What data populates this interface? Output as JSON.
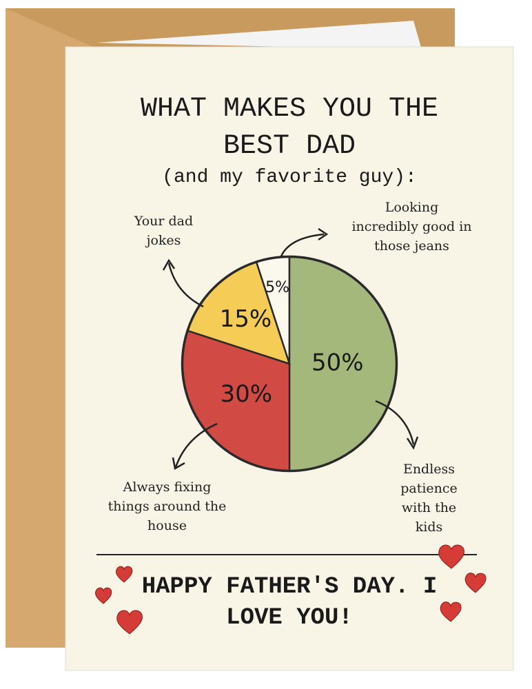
{
  "chart_data": {
    "type": "pie",
    "title": "WHAT MAKES YOU THE BEST DAD",
    "subtitle": "(and my favorite guy):",
    "categories": [
      "Looking incredibly good in those jeans",
      "Endless patience with the kids",
      "Always fixing things around the house",
      "Your dad jokes"
    ],
    "values": [
      5,
      50,
      30,
      15
    ],
    "value_labels": [
      "5%",
      "50%",
      "30%",
      "15%"
    ],
    "colors": [
      "#fbf8ee",
      "#a3b87a",
      "#d24a44",
      "#f5cc55"
    ],
    "footer": "HAPPY FATHER'S DAY. I LOVE YOU!"
  }
}
